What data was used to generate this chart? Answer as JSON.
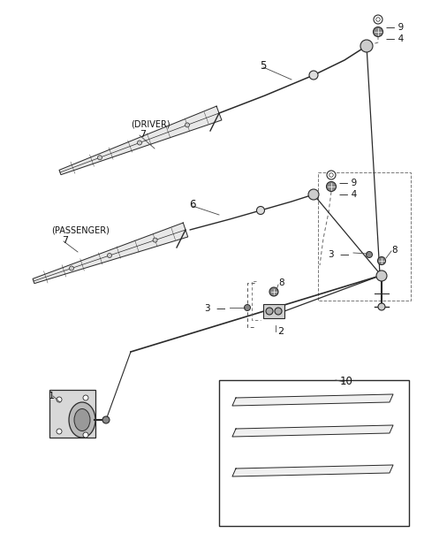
{
  "bg_color": "#ffffff",
  "line_color": "#2a2a2a",
  "fig_width": 4.8,
  "fig_height": 6.12,
  "dpi": 100
}
